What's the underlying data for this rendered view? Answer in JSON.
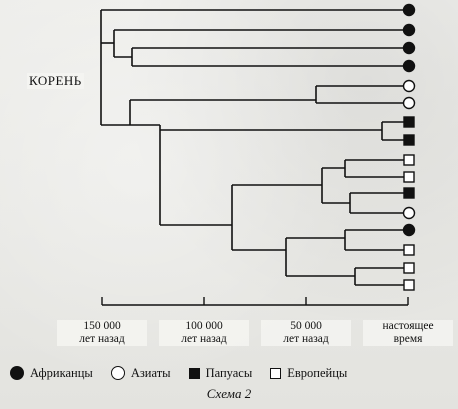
{
  "root_label": "КОРЕНЬ",
  "axis": {
    "ticks": [
      {
        "value": 150000,
        "line1": "150 000",
        "line2": "лет назад"
      },
      {
        "value": 100000,
        "line1": "100 000",
        "line2": "лет назад"
      },
      {
        "value": 50000,
        "line1": "50 000",
        "line2": "лет назад"
      },
      {
        "value": 0,
        "line1": "настоящее",
        "line2": "время"
      }
    ]
  },
  "legend": [
    {
      "symbol": "black-circle",
      "label": "Африканцы"
    },
    {
      "symbol": "white-circle",
      "label": "Азиаты"
    },
    {
      "symbol": "black-square",
      "label": "Папуасы"
    },
    {
      "symbol": "white-square",
      "label": "Европейцы"
    }
  ],
  "leaves": [
    "black-circle",
    "black-circle",
    "black-circle",
    "black-circle",
    "white-circle",
    "white-circle",
    "black-square",
    "black-square",
    "white-square",
    "white-square",
    "black-square",
    "white-circle",
    "black-circle",
    "white-square",
    "white-square",
    "white-square"
  ],
  "caption": "Схема 2"
}
